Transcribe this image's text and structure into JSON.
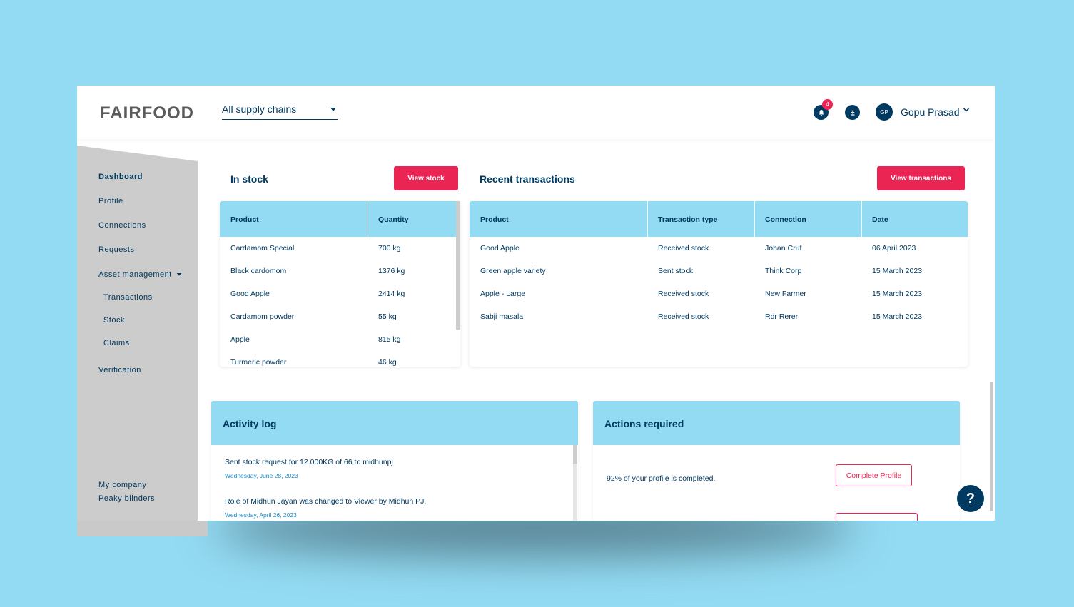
{
  "header": {
    "logo": "FAIRFOOD",
    "supply_chain_select": "All supply chains",
    "notification_count": "4",
    "user_initials": "GP",
    "user_name": "Gopu Prasad"
  },
  "sidebar": {
    "items": [
      {
        "label": "Dashboard"
      },
      {
        "label": "Profile"
      },
      {
        "label": "Connections"
      },
      {
        "label": "Requests"
      },
      {
        "label": "Asset management"
      },
      {
        "label": "Transactions"
      },
      {
        "label": "Stock"
      },
      {
        "label": "Claims"
      },
      {
        "label": "Verification"
      }
    ],
    "company_heading": "My company",
    "company_name": "Peaky blinders"
  },
  "in_stock": {
    "title": "In stock",
    "button": "View stock",
    "columns": [
      "Product",
      "Quantity"
    ],
    "rows": [
      [
        "Cardamom Special",
        "700 kg"
      ],
      [
        "Black cardomom",
        "1376 kg"
      ],
      [
        "Good Apple",
        "2414 kg"
      ],
      [
        "Cardamom powder",
        "55 kg"
      ],
      [
        "Apple",
        "815 kg"
      ],
      [
        "Turmeric powder",
        "46 kg"
      ]
    ]
  },
  "recent_transactions": {
    "title": "Recent transactions",
    "button": "View transactions",
    "columns": [
      "Product",
      "Transaction type",
      "Connection",
      "Date"
    ],
    "rows": [
      [
        "Good Apple",
        "Received stock",
        "Johan Cruf",
        "06 April 2023"
      ],
      [
        "Green apple variety",
        "Sent stock",
        "Think Corp",
        "15 March 2023"
      ],
      [
        "Apple - Large",
        "Received stock",
        "New Farmer",
        "15 March 2023"
      ],
      [
        "Sabji masala",
        "Received stock",
        "Rdr Rerer",
        "15 March 2023"
      ]
    ]
  },
  "activity_log": {
    "title": "Activity log",
    "entries": [
      {
        "text": "Sent stock request for 12.000KG of 66 to midhunpj",
        "date": "Wednesday, June 28, 2023"
      },
      {
        "text": "Role of Midhun Jayan was changed to Viewer by Midhun PJ.",
        "date": "Wednesday, April 26, 2023"
      }
    ]
  },
  "actions_required": {
    "title": "Actions required",
    "items": [
      {
        "text": "92% of your profile is completed.",
        "button": "Complete Profile"
      }
    ]
  },
  "help_label": "?",
  "colors": {
    "background": "#93DBF3",
    "accent_red": "#EA2553",
    "navy": "#003A60",
    "table_header": "#93DBF3",
    "sidebar": "#CCCCCC"
  }
}
